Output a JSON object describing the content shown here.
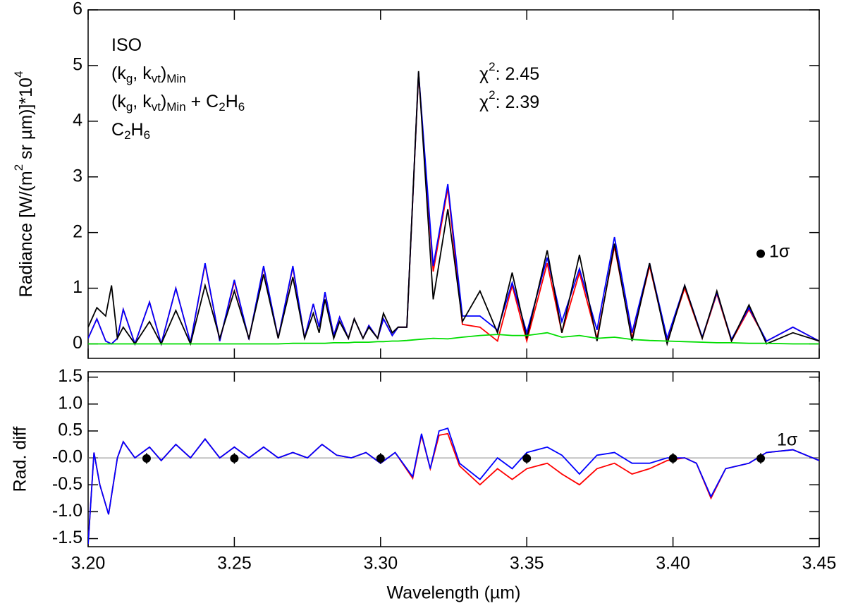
{
  "chart_data": [
    {
      "type": "line",
      "ylabel_parts": [
        {
          "text": "Radiance [W/(m"
        },
        {
          "text": "2",
          "sup": true
        },
        {
          "text": " sr µm)]*10"
        },
        {
          "text": "4",
          "sup": true
        }
      ],
      "xlim": [
        3.2,
        3.45
      ],
      "xticks": [
        {
          "value": 3.2,
          "label": "3.20"
        },
        3.25,
        {
          "value": 3.3,
          "label": "3.30"
        },
        3.35,
        {
          "value": 3.4,
          "label": "3.40"
        },
        3.45
      ],
      "ylim": [
        -0.26,
        6
      ],
      "yticks": [
        0,
        1,
        2,
        3,
        4,
        5,
        6
      ],
      "x": [
        3.2,
        3.203,
        3.206,
        3.208,
        3.21,
        3.212,
        3.216,
        3.221,
        3.225,
        3.23,
        3.235,
        3.24,
        3.245,
        3.25,
        3.255,
        3.26,
        3.265,
        3.27,
        3.274,
        3.277,
        3.279,
        3.281,
        3.284,
        3.286,
        3.289,
        3.291,
        3.294,
        3.296,
        3.299,
        3.301,
        3.304,
        3.306,
        3.309,
        3.313,
        3.318,
        3.323,
        3.328,
        3.334,
        3.34,
        3.345,
        3.35,
        3.357,
        3.362,
        3.368,
        3.374,
        3.38,
        3.386,
        3.392,
        3.398,
        3.404,
        3.41,
        3.415,
        3.42,
        3.426,
        3.432,
        3.441,
        3.45
      ],
      "series": [
        {
          "name_parts": [
            {
              "text": "(k"
            },
            {
              "text": "g",
              "sub": true
            },
            {
              "text": ", k"
            },
            {
              "text": "vt",
              "sub": true
            },
            {
              "text": ")"
            },
            {
              "text": "Min",
              "sub": true
            }
          ],
          "color": "#ff0000",
          "values": [
            0.1,
            0.45,
            0.05,
            0,
            0.1,
            0.62,
            0,
            0.75,
            0,
            1.0,
            0.02,
            1.43,
            0.05,
            1.12,
            0.08,
            1.38,
            0.1,
            1.38,
            0.1,
            0.72,
            0.3,
            0.92,
            0.15,
            0.48,
            0.1,
            0.45,
            0.1,
            0.33,
            0.1,
            0.45,
            0.15,
            0.3,
            0.3,
            4.85,
            1.3,
            2.8,
            0.35,
            0.3,
            0.05,
            1.05,
            0.05,
            1.45,
            0.2,
            1.28,
            0.1,
            1.75,
            0.1,
            1.4,
            0.05,
            1.0,
            0.1,
            0.9,
            0.05,
            0.62,
            0.05,
            0.3,
            0.05
          ]
        },
        {
          "name_parts": [
            {
              "text": "(k"
            },
            {
              "text": "g",
              "sub": true
            },
            {
              "text": ", k"
            },
            {
              "text": "vt",
              "sub": true
            },
            {
              "text": ")"
            },
            {
              "text": "Min",
              "sub": true
            },
            {
              "text": " + C"
            },
            {
              "text": "2",
              "sub": true
            },
            {
              "text": "H"
            },
            {
              "text": "6",
              "sub": true
            }
          ],
          "color": "#0000ff",
          "values": [
            0.1,
            0.45,
            0.05,
            0,
            0.1,
            0.62,
            0,
            0.75,
            0,
            1.0,
            0.02,
            1.45,
            0.05,
            1.15,
            0.08,
            1.4,
            0.1,
            1.4,
            0.1,
            0.72,
            0.3,
            0.93,
            0.15,
            0.48,
            0.1,
            0.45,
            0.1,
            0.33,
            0.1,
            0.45,
            0.15,
            0.3,
            0.3,
            4.88,
            1.4,
            2.87,
            0.5,
            0.5,
            0.25,
            1.1,
            0.2,
            1.55,
            0.4,
            1.35,
            0.25,
            1.92,
            0.2,
            1.45,
            0.1,
            1.05,
            0.12,
            0.92,
            0.08,
            0.65,
            0.05,
            0.3,
            0.05
          ]
        },
        {
          "name_parts": [
            {
              "text": "ISO"
            }
          ],
          "color": "#000000",
          "values": [
            0.3,
            0.65,
            0.5,
            1.05,
            0.1,
            0.3,
            0,
            0.4,
            0,
            0.6,
            0,
            1.05,
            0.1,
            0.95,
            0.1,
            1.25,
            0.1,
            1.2,
            0.1,
            0.55,
            0.2,
            0.8,
            0.1,
            0.4,
            0.1,
            0.45,
            0.1,
            0.3,
            0.1,
            0.55,
            0.2,
            0.3,
            0.3,
            4.9,
            0.8,
            2.42,
            0.4,
            0.95,
            0.2,
            1.28,
            0.1,
            1.68,
            0.2,
            1.6,
            0.05,
            1.8,
            0.05,
            1.45,
            0,
            1.05,
            0.1,
            0.95,
            0.05,
            0.7,
            0,
            0.2,
            0.05
          ]
        },
        {
          "name_parts": [
            {
              "text": "C"
            },
            {
              "text": "2",
              "sub": true
            },
            {
              "text": "H"
            },
            {
              "text": "6",
              "sub": true
            }
          ],
          "color": "#00dd00",
          "values": [
            0,
            0,
            0,
            0,
            0,
            0,
            0,
            0,
            0,
            0,
            0,
            0,
            0,
            0,
            0,
            0,
            0,
            0.01,
            0.01,
            0.01,
            0.01,
            0.01,
            0.02,
            0.02,
            0.02,
            0.03,
            0.03,
            0.03,
            0.04,
            0.04,
            0.05,
            0.05,
            0.06,
            0.08,
            0.1,
            0.09,
            0.12,
            0.15,
            0.17,
            0.15,
            0.15,
            0.2,
            0.12,
            0.15,
            0.1,
            0.12,
            0.08,
            0.06,
            0.05,
            0.04,
            0.03,
            0.02,
            0.02,
            0.01,
            0.01,
            0,
            0
          ]
        }
      ],
      "annotations": [
        {
          "parts": [
            {
              "text": "χ"
            },
            {
              "text": "2",
              "sup": true
            },
            {
              "text": ": 2.45"
            }
          ],
          "color": "#ff0000"
        },
        {
          "parts": [
            {
              "text": "χ"
            },
            {
              "text": "2",
              "sup": true
            },
            {
              "text": ": 2.39"
            }
          ],
          "color": "#0000ff"
        }
      ],
      "error_points": {
        "x": [
          3.43
        ],
        "values": [
          1.62
        ],
        "errors": [
          0.06
        ],
        "label": "1σ"
      }
    },
    {
      "type": "line",
      "ylabel": "Rad. diff",
      "xlabel": "Wavelength (µm)",
      "xlim": [
        3.2,
        3.45
      ],
      "xticks": [
        {
          "value": 3.2,
          "label": "3.20"
        },
        3.25,
        {
          "value": 3.3,
          "label": "3.30"
        },
        3.35,
        {
          "value": 3.4,
          "label": "3.40"
        },
        3.45
      ],
      "ylim": [
        -1.65,
        1.6
      ],
      "yticks": [
        -1.5,
        {
          "value": -1,
          "label": "-1.0"
        },
        -0.5,
        {
          "value": 0,
          "label": "-0.0"
        },
        0.5,
        {
          "value": 1,
          "label": "1.0"
        },
        1.5
      ],
      "zero_line": true,
      "x": [
        3.2,
        3.202,
        3.204,
        3.207,
        3.21,
        3.212,
        3.216,
        3.221,
        3.225,
        3.23,
        3.235,
        3.24,
        3.245,
        3.25,
        3.255,
        3.26,
        3.265,
        3.27,
        3.275,
        3.28,
        3.285,
        3.29,
        3.295,
        3.3,
        3.305,
        3.311,
        3.314,
        3.317,
        3.32,
        3.323,
        3.327,
        3.334,
        3.34,
        3.345,
        3.35,
        3.357,
        3.362,
        3.368,
        3.374,
        3.38,
        3.386,
        3.392,
        3.398,
        3.404,
        3.408,
        3.413,
        3.418,
        3.426,
        3.432,
        3.441,
        3.45
      ],
      "series": [
        {
          "color": "#ff0000",
          "values": [
            -1.6,
            0.1,
            -0.5,
            -1.05,
            0,
            0.3,
            0,
            0.2,
            -0.05,
            0.25,
            0,
            0.35,
            0,
            0.2,
            0,
            0.2,
            0,
            0.1,
            0,
            0.25,
            0.05,
            0,
            0.1,
            -0.1,
            0.1,
            -0.38,
            0.42,
            -0.2,
            0.42,
            0.45,
            -0.15,
            -0.5,
            -0.2,
            -0.4,
            -0.2,
            -0.1,
            -0.3,
            -0.5,
            -0.2,
            -0.1,
            -0.3,
            -0.2,
            -0.05,
            0,
            -0.1,
            -0.75,
            -0.2,
            -0.1,
            0.1,
            0.15,
            -0.05
          ]
        },
        {
          "color": "#0000ff",
          "values": [
            -1.6,
            0.1,
            -0.5,
            -1.05,
            0,
            0.3,
            0,
            0.2,
            -0.05,
            0.25,
            0,
            0.35,
            0,
            0.2,
            0,
            0.2,
            0,
            0.1,
            0,
            0.25,
            0.05,
            0,
            0.1,
            -0.1,
            0.1,
            -0.35,
            0.45,
            -0.2,
            0.5,
            0.55,
            -0.1,
            -0.4,
            0,
            -0.2,
            0.1,
            0.2,
            0.05,
            -0.3,
            0.05,
            0.1,
            -0.1,
            -0.1,
            0,
            0,
            -0.1,
            -0.72,
            -0.2,
            -0.1,
            0.1,
            0.15,
            -0.05
          ]
        }
      ],
      "error_points": {
        "x": [
          3.22,
          3.25,
          3.3,
          3.35,
          3.4,
          3.43
        ],
        "values": [
          -0.01,
          -0.01,
          -0.01,
          -0.01,
          -0.01,
          -0.01
        ],
        "errors": [
          0.1,
          0.1,
          0.1,
          0.1,
          0.1,
          0.1
        ],
        "label": "1σ"
      }
    }
  ]
}
